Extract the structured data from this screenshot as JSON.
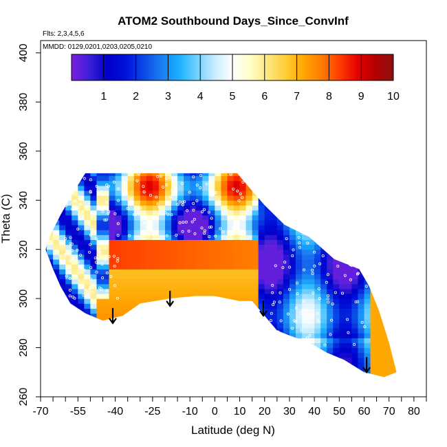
{
  "chart_data": {
    "type": "heatmap",
    "title": "ATOM2 Southbound Days_Since_ConvInf",
    "annotations": {
      "flights": "Flts: 2,3,4,5,6",
      "dates": "MMDD: 0129,0201,0203,0205,0210"
    },
    "xlabel": "Latitude (deg N)",
    "ylabel": "Theta (C)",
    "xlim": [
      -70,
      85
    ],
    "ylim": [
      260,
      405
    ],
    "x_ticks": [
      -70,
      -65,
      -60,
      -55,
      -50,
      -45,
      -40,
      -35,
      -30,
      -25,
      -20,
      -15,
      -10,
      -5,
      0,
      5,
      10,
      15,
      20,
      25,
      30,
      35,
      40,
      45,
      50,
      55,
      60,
      65,
      70,
      75,
      80,
      85
    ],
    "x_tick_labels": [
      "-70",
      "-55",
      "-40",
      "-25",
      "-10",
      "0",
      "10",
      "20",
      "30",
      "40",
      "50",
      "60",
      "70",
      "80"
    ],
    "x_tick_label_values": [
      -70,
      -55,
      -40,
      -25,
      -10,
      0,
      10,
      20,
      30,
      40,
      50,
      60,
      70,
      80
    ],
    "y_tick_labels": [
      "260",
      "280",
      "300",
      "320",
      "340",
      "360",
      "380",
      "400"
    ],
    "y_tick_label_values": [
      260,
      280,
      300,
      320,
      340,
      360,
      380,
      400
    ],
    "colorbar": {
      "range": [
        0,
        10
      ],
      "tick_labels": [
        "1",
        "2",
        "3",
        "4",
        "5",
        "6",
        "7",
        "8",
        "9",
        "10"
      ],
      "colors": [
        "#7a1fe0",
        "#3d1fd8",
        "#0000c8",
        "#0010d8",
        "#0a47e6",
        "#1a7cf0",
        "#1ab0ff",
        "#6fd0ff",
        "#c8ecff",
        "#ffffff",
        "#ffffc8",
        "#ffe680",
        "#ffcc33",
        "#ffa500",
        "#ff7a00",
        "#ff3c00",
        "#e60000",
        "#b40000",
        "#8c1010"
      ]
    },
    "region_outline": [
      [
        -52,
        351
      ],
      [
        9,
        351
      ],
      [
        14,
        345
      ],
      [
        20,
        338
      ],
      [
        28,
        330
      ],
      [
        38,
        325
      ],
      [
        48,
        316
      ],
      [
        58,
        312
      ],
      [
        62,
        305
      ],
      [
        66,
        295
      ],
      [
        70,
        282
      ],
      [
        73,
        270
      ],
      [
        68,
        268
      ],
      [
        60,
        270
      ],
      [
        52,
        275
      ],
      [
        45,
        278
      ],
      [
        38,
        282
      ],
      [
        30,
        285
      ],
      [
        25,
        287
      ],
      [
        20,
        293
      ],
      [
        15,
        299
      ],
      [
        10,
        299
      ],
      [
        0,
        301
      ],
      [
        -8,
        301
      ],
      [
        -18,
        300
      ],
      [
        -30,
        298
      ],
      [
        -37,
        293
      ],
      [
        -45,
        291
      ],
      [
        -52,
        294
      ],
      [
        -58,
        298
      ],
      [
        -62,
        305
      ],
      [
        -65,
        312
      ],
      [
        -68,
        320
      ],
      [
        -66,
        326
      ],
      [
        -62,
        334
      ],
      [
        -57,
        343
      ]
    ],
    "field_description": "Orange-red (7-9 days) dominates the lower-middle band between about -40 and 18 deg N for theta 295-323 C; blue (1-4 days) dominates the northern region 20-60 deg N for theta 290-330 C and patches near -55 deg N.",
    "arrows_at_latitude": [
      -41,
      -18,
      19.5,
      61
    ],
    "arrow_bottom_theta": [
      290,
      297,
      293,
      270
    ]
  }
}
